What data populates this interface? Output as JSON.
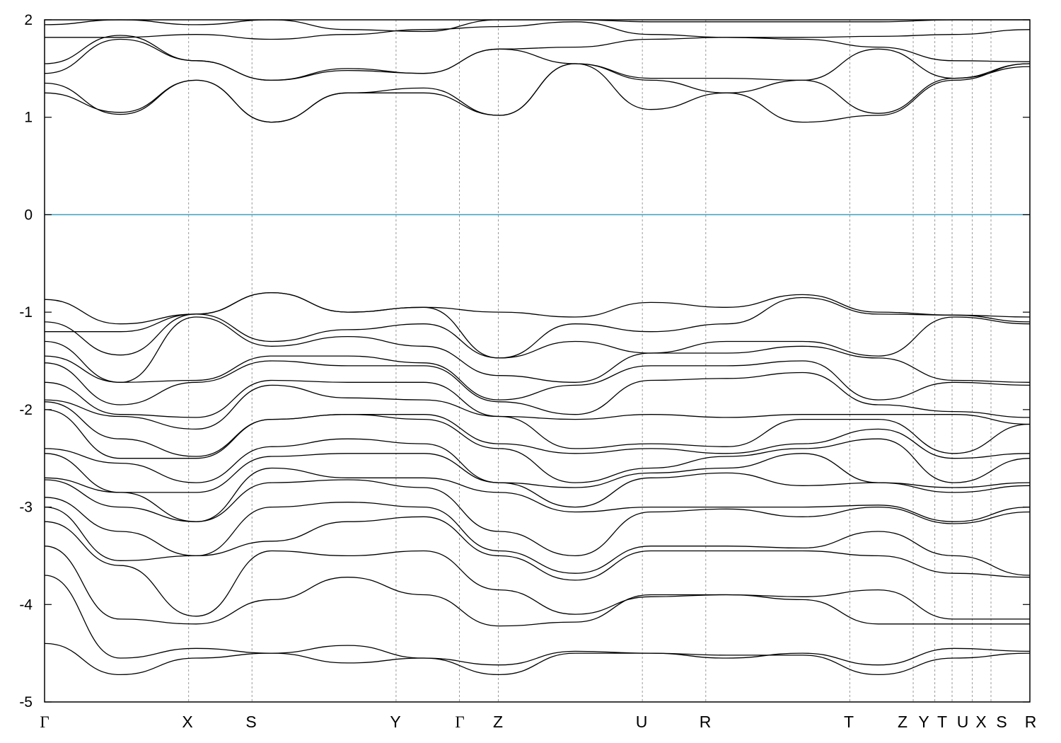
{
  "chart_data": {
    "type": "line",
    "title": "",
    "xlabel": "",
    "ylabel": "",
    "ylim": [
      -5,
      2
    ],
    "yticks": [
      2,
      1,
      0,
      -1,
      -2,
      -3,
      -4,
      -5
    ],
    "ytick_labels": [
      "2",
      "1",
      "0",
      "-1",
      "-2",
      "-3",
      "-4",
      "-5"
    ],
    "kpoints": [
      {
        "label": "Γ",
        "pos": 0.0
      },
      {
        "label": "X",
        "pos": 1.0
      },
      {
        "label": "S",
        "pos": 1.44
      },
      {
        "label": "Y",
        "pos": 2.44
      },
      {
        "label": "Γ",
        "pos": 2.88
      },
      {
        "label": "Z",
        "pos": 3.15
      },
      {
        "label": "U",
        "pos": 4.15
      },
      {
        "label": "R",
        "pos": 4.59
      },
      {
        "label": "T",
        "pos": 5.59
      },
      {
        "label": "Z",
        "pos": 6.03
      },
      {
        "label": "Y",
        "pos": 6.18
      },
      {
        "label": "T",
        "pos": 6.3
      },
      {
        "label": "U",
        "pos": 6.3
      },
      {
        "label": "X",
        "pos": 6.44
      },
      {
        "label": "S",
        "pos": 6.57
      },
      {
        "label": "R",
        "pos": 6.84
      }
    ],
    "kpath_labels_printed": [
      "Γ",
      "X",
      "S",
      "Y",
      "Γ",
      "Z",
      "U",
      "R",
      "T",
      "Z",
      "Y",
      "T",
      "U",
      "X",
      "S",
      "R"
    ],
    "fermi_level": 0,
    "fermi_color": "#3a9fbf",
    "band_color": "#000000",
    "vertical_lines": "dashed",
    "segment_bounds": [
      0,
      1.0,
      1.44,
      2.44,
      2.88,
      3.15,
      4.15,
      4.59,
      5.59,
      6.03,
      6.3,
      6.57,
      6.84
    ],
    "bands": [
      {
        "name": "c1",
        "values": [
          1.25,
          1.05,
          1.38,
          0.95,
          1.25,
          1.25,
          1.02,
          1.55,
          1.08,
          1.25,
          0.95,
          1.02,
          1.38,
          1.55
        ]
      },
      {
        "name": "c2",
        "values": [
          1.35,
          1.03,
          1.38,
          0.95,
          1.25,
          1.3,
          1.02,
          1.55,
          1.38,
          1.25,
          1.38,
          1.04,
          1.4,
          1.52
        ]
      },
      {
        "name": "c3",
        "values": [
          1.45,
          1.8,
          1.58,
          1.38,
          1.48,
          1.45,
          1.7,
          1.55,
          1.4,
          1.4,
          1.38,
          1.7,
          1.4,
          1.55
        ]
      },
      {
        "name": "c4",
        "values": [
          1.55,
          1.84,
          1.58,
          1.38,
          1.5,
          1.45,
          1.7,
          1.72,
          1.8,
          1.82,
          1.8,
          1.72,
          1.58,
          1.57
        ]
      },
      {
        "name": "c5",
        "values": [
          1.82,
          1.82,
          1.85,
          1.8,
          1.85,
          1.9,
          1.93,
          1.98,
          1.85,
          1.82,
          1.82,
          1.83,
          1.85,
          1.9
        ]
      },
      {
        "name": "c6",
        "values": [
          1.95,
          2.0,
          1.95,
          2.0,
          1.9,
          1.88,
          2.0,
          2.0,
          1.98,
          1.98,
          1.98,
          1.98,
          2.0,
          2.0
        ]
      },
      {
        "name": "v1",
        "values": [
          -0.87,
          -1.12,
          -1.02,
          -0.8,
          -1.0,
          -0.95,
          -1.0,
          -1.05,
          -0.9,
          -0.95,
          -0.82,
          -1.0,
          -1.03,
          -1.05
        ]
      },
      {
        "name": "v2",
        "values": [
          -1.1,
          -1.44,
          -1.02,
          -0.8,
          -1.0,
          -0.95,
          -1.47,
          -1.12,
          -1.2,
          -1.12,
          -0.85,
          -1.02,
          -1.03,
          -1.1
        ]
      },
      {
        "name": "v3",
        "values": [
          -1.2,
          -1.2,
          -1.02,
          -1.3,
          -1.18,
          -1.12,
          -1.47,
          -1.3,
          -1.42,
          -1.3,
          -1.3,
          -1.45,
          -1.05,
          -1.12
        ]
      },
      {
        "name": "v4",
        "values": [
          -1.3,
          -1.72,
          -1.05,
          -1.35,
          -1.25,
          -1.35,
          -1.65,
          -1.72,
          -1.42,
          -1.42,
          -1.35,
          -1.47,
          -1.7,
          -1.72
        ]
      },
      {
        "name": "v5",
        "values": [
          -1.45,
          -1.72,
          -1.7,
          -1.45,
          -1.45,
          -1.52,
          -1.9,
          -1.75,
          -1.55,
          -1.55,
          -1.5,
          -1.9,
          -1.72,
          -1.75
        ]
      },
      {
        "name": "v6",
        "values": [
          -1.52,
          -1.95,
          -1.72,
          -1.5,
          -1.55,
          -1.55,
          -1.92,
          -2.05,
          -1.7,
          -1.68,
          -1.62,
          -1.95,
          -2.02,
          -2.08
        ]
      },
      {
        "name": "v7",
        "values": [
          -1.72,
          -2.05,
          -2.08,
          -1.7,
          -1.72,
          -1.72,
          -2.07,
          -2.1,
          -2.05,
          -2.08,
          -2.05,
          -2.05,
          -2.05,
          -2.15
        ]
      },
      {
        "name": "v8",
        "values": [
          -1.9,
          -2.07,
          -2.2,
          -1.75,
          -1.88,
          -1.9,
          -2.07,
          -2.4,
          -2.35,
          -2.38,
          -2.1,
          -2.1,
          -2.45,
          -2.15
        ]
      },
      {
        "name": "v9",
        "values": [
          -1.92,
          -2.3,
          -2.48,
          -2.1,
          -2.05,
          -2.05,
          -2.35,
          -2.45,
          -2.4,
          -2.45,
          -2.35,
          -2.2,
          -2.5,
          -2.45
        ]
      },
      {
        "name": "v10",
        "values": [
          -2.0,
          -2.5,
          -2.5,
          -2.1,
          -2.05,
          -2.1,
          -2.4,
          -2.75,
          -2.6,
          -2.48,
          -2.4,
          -2.3,
          -2.75,
          -2.5
        ]
      },
      {
        "name": "v11",
        "values": [
          -2.4,
          -2.55,
          -2.75,
          -2.38,
          -2.3,
          -2.35,
          -2.75,
          -2.8,
          -2.65,
          -2.6,
          -2.45,
          -2.75,
          -2.8,
          -2.75
        ]
      },
      {
        "name": "v12",
        "values": [
          -2.45,
          -2.85,
          -2.85,
          -2.48,
          -2.45,
          -2.45,
          -2.75,
          -3.0,
          -2.7,
          -2.65,
          -2.78,
          -2.75,
          -2.85,
          -2.78
        ]
      },
      {
        "name": "v13",
        "values": [
          -2.7,
          -2.85,
          -3.15,
          -2.6,
          -2.7,
          -2.7,
          -2.85,
          -3.05,
          -3.0,
          -3.0,
          -3.0,
          -2.98,
          -3.15,
          -3.0
        ]
      },
      {
        "name": "v14",
        "values": [
          -2.72,
          -3.0,
          -3.15,
          -2.75,
          -2.72,
          -2.8,
          -3.25,
          -3.5,
          -3.05,
          -3.02,
          -3.1,
          -3.0,
          -3.17,
          -3.05
        ]
      },
      {
        "name": "v15",
        "values": [
          -2.9,
          -3.25,
          -3.5,
          -3.0,
          -2.95,
          -3.0,
          -3.45,
          -3.68,
          -3.4,
          -3.4,
          -3.42,
          -3.25,
          -3.5,
          -3.7
        ]
      },
      {
        "name": "v16",
        "values": [
          -3.0,
          -3.55,
          -3.5,
          -3.35,
          -3.15,
          -3.1,
          -3.5,
          -3.75,
          -3.45,
          -3.45,
          -3.45,
          -3.5,
          -3.68,
          -3.72
        ]
      },
      {
        "name": "v17",
        "values": [
          -3.15,
          -3.6,
          -4.12,
          -3.45,
          -3.5,
          -3.45,
          -3.85,
          -4.1,
          -3.92,
          -3.9,
          -3.92,
          -3.85,
          -4.15,
          -4.15
        ]
      },
      {
        "name": "v18",
        "values": [
          -3.4,
          -4.15,
          -4.2,
          -3.95,
          -3.72,
          -3.9,
          -4.22,
          -4.18,
          -3.9,
          -3.9,
          -3.95,
          -4.2,
          -4.2,
          -4.2
        ]
      },
      {
        "name": "v19",
        "values": [
          -3.7,
          -4.55,
          -4.45,
          -4.5,
          -4.42,
          -4.55,
          -4.62,
          -4.48,
          -4.5,
          -4.55,
          -4.5,
          -4.62,
          -4.45,
          -4.48
        ]
      },
      {
        "name": "v20",
        "values": [
          -4.4,
          -4.72,
          -4.55,
          -4.5,
          -4.6,
          -4.55,
          -4.72,
          -4.5,
          -4.5,
          -4.52,
          -4.52,
          -4.72,
          -4.55,
          -4.5
        ]
      }
    ]
  }
}
